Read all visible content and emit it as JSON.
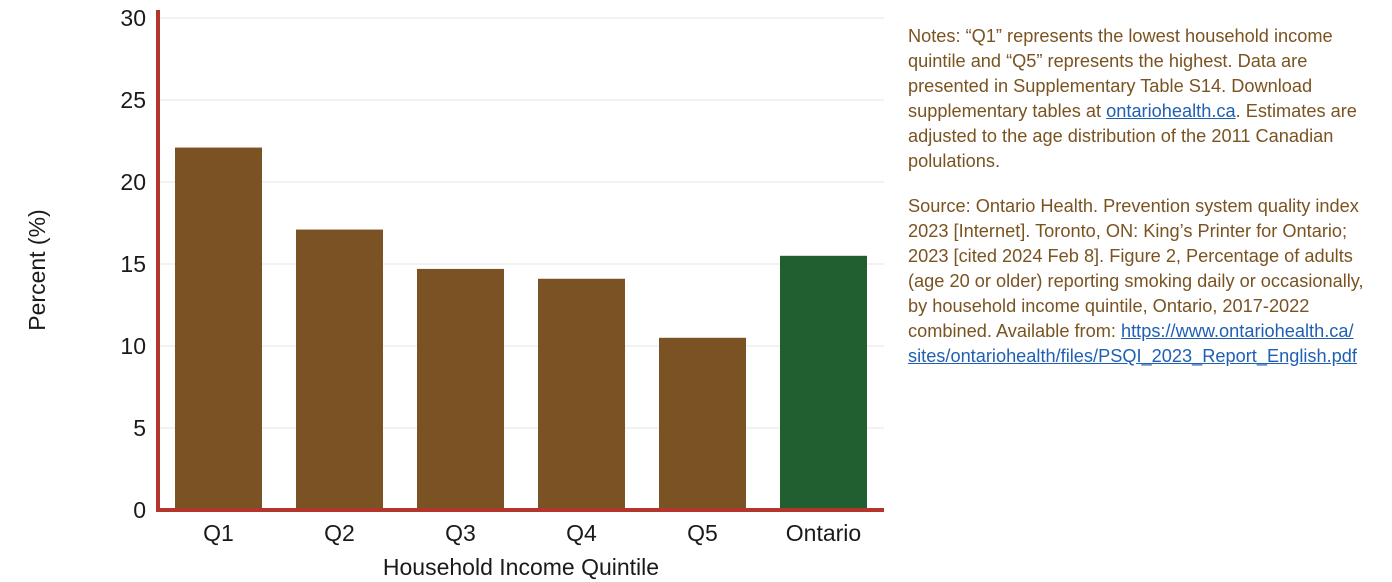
{
  "chart_data": {
    "type": "bar",
    "title": "",
    "xlabel": "Household Income Quintile",
    "ylabel": "Percent (%)",
    "categories": [
      "Q1",
      "Q2",
      "Q3",
      "Q4",
      "Q5",
      "Ontario"
    ],
    "values": [
      22.1,
      17.1,
      14.7,
      14.1,
      10.5,
      15.5
    ],
    "ylim": [
      0,
      30
    ],
    "yticks": [
      0,
      5,
      10,
      15,
      20,
      25,
      30
    ],
    "grid": true,
    "legend": "none",
    "colors": {
      "bar": "#7b5223",
      "highlight": "#215f31",
      "axis": "#b3352c",
      "grid": "#e6e6e6"
    },
    "highlight_category": "Ontario"
  },
  "notes": {
    "text1": "Notes: “Q1” represents the lowest household income quintile and “Q5” represents the highest. Data are presented in Supplementary Table S14. Download supplementary tables at ",
    "link1": "ontariohealth.ca",
    "text2": ". Estimates are adjusted to the age distribution of the 2011 Canadian polulations."
  },
  "source": {
    "text": "Source: Ontario Health. Prevention system quality index 2023 [Internet]. Toronto, ON: King’s Printer for Ontario; 2023 [cited 2024 Feb 8].  Figure 2, Percentage of adults (age 20 or older) reporting smoking daily or occasionally, by household income quintile, Ontario, 2017-2022 combined. Available from: ",
    "link": "https://www.ontariohealth.ca/sites/ontariohealth/files/PSQI_2023_Report_English.pdf"
  }
}
